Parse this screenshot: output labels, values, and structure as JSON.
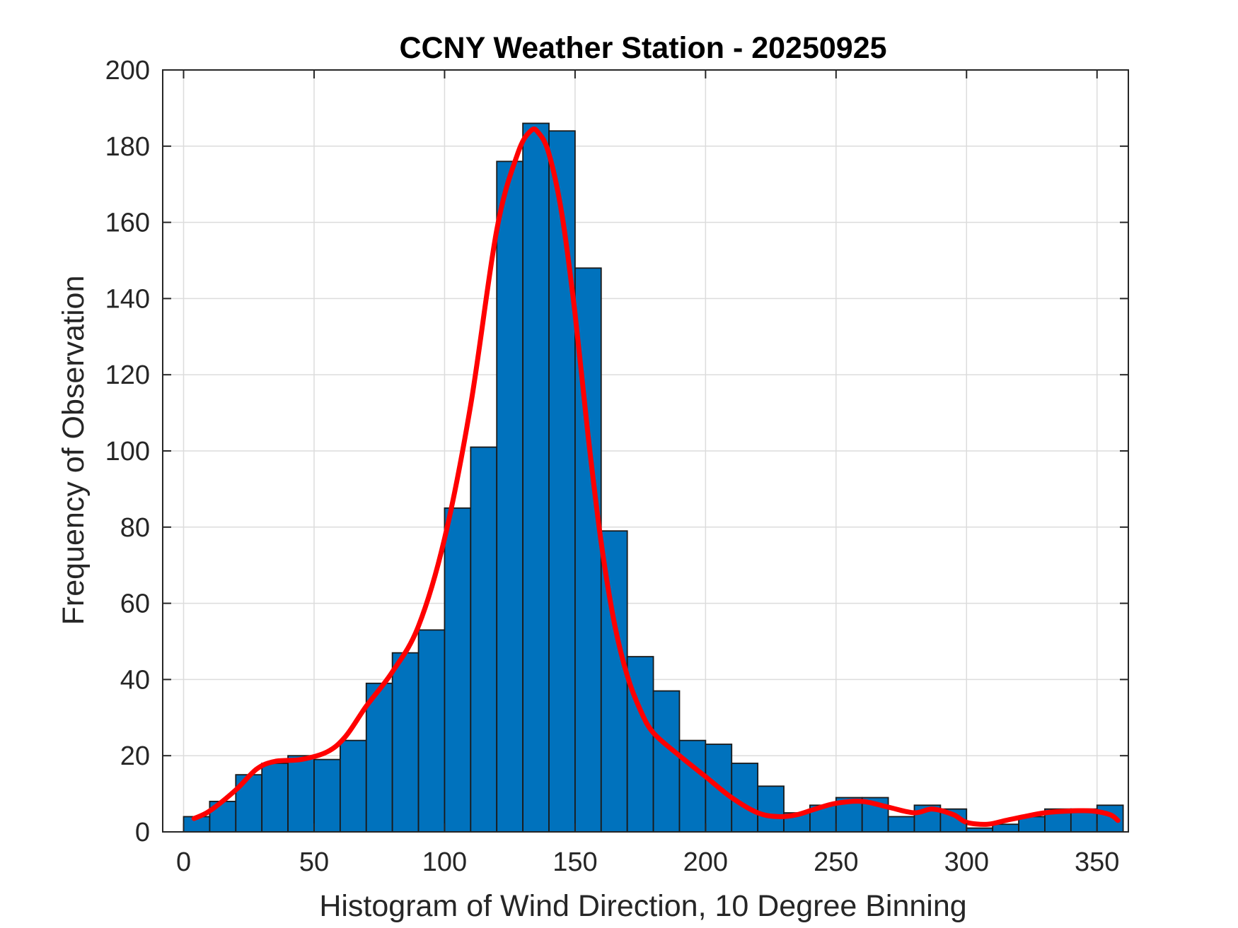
{
  "chart_data": {
    "type": "bar",
    "subtype": "histogram",
    "title": "CCNY Weather Station - 20250925",
    "xlabel": "Histogram of Wind Direction, 10 Degree Binning",
    "ylabel": "Frequency of Observation",
    "xlim": [
      -8,
      362
    ],
    "ylim": [
      0,
      200
    ],
    "xticks": [
      0,
      50,
      100,
      150,
      200,
      250,
      300,
      350
    ],
    "yticks": [
      0,
      20,
      40,
      60,
      80,
      100,
      120,
      140,
      160,
      180,
      200
    ],
    "grid": true,
    "bin_width": 10,
    "bin_edges": [
      0,
      10,
      20,
      30,
      40,
      50,
      60,
      70,
      80,
      90,
      100,
      110,
      120,
      130,
      140,
      150,
      160,
      170,
      180,
      190,
      200,
      210,
      220,
      230,
      240,
      250,
      260,
      270,
      280,
      290,
      300,
      310,
      320,
      330,
      340,
      350,
      360
    ],
    "values": [
      4,
      8,
      15,
      18,
      20,
      19,
      24,
      39,
      47,
      53,
      85,
      101,
      176,
      186,
      184,
      148,
      79,
      46,
      37,
      24,
      23,
      18,
      12,
      5,
      7,
      9,
      9,
      4,
      7,
      6,
      1,
      2,
      4,
      6,
      6,
      7
    ],
    "bar_color": "#0072BD",
    "fit_curve": {
      "color": "#FF0000",
      "x": [
        4,
        10,
        20,
        28,
        35,
        45,
        55,
        62,
        70,
        80,
        90,
        100,
        110,
        120,
        128,
        133,
        136,
        140,
        145,
        150,
        155,
        160,
        165,
        170,
        175,
        180,
        190,
        200,
        210,
        220,
        228,
        235,
        242,
        250,
        260,
        270,
        280,
        287,
        295,
        300,
        308,
        315,
        322,
        330,
        340,
        348,
        355,
        358
      ],
      "y": [
        3.5,
        5.5,
        11,
        16.5,
        18.5,
        19,
        21,
        25,
        33,
        42,
        54,
        77,
        112,
        158,
        178,
        184,
        183.5,
        178,
        162,
        136,
        104,
        76,
        55,
        41,
        32,
        26,
        20,
        14.5,
        9,
        5,
        4,
        4.5,
        6,
        7.5,
        8,
        6.5,
        5,
        6,
        4.5,
        2.5,
        2,
        3,
        4,
        5,
        5.5,
        5.5,
        4.5,
        3
      ]
    }
  }
}
